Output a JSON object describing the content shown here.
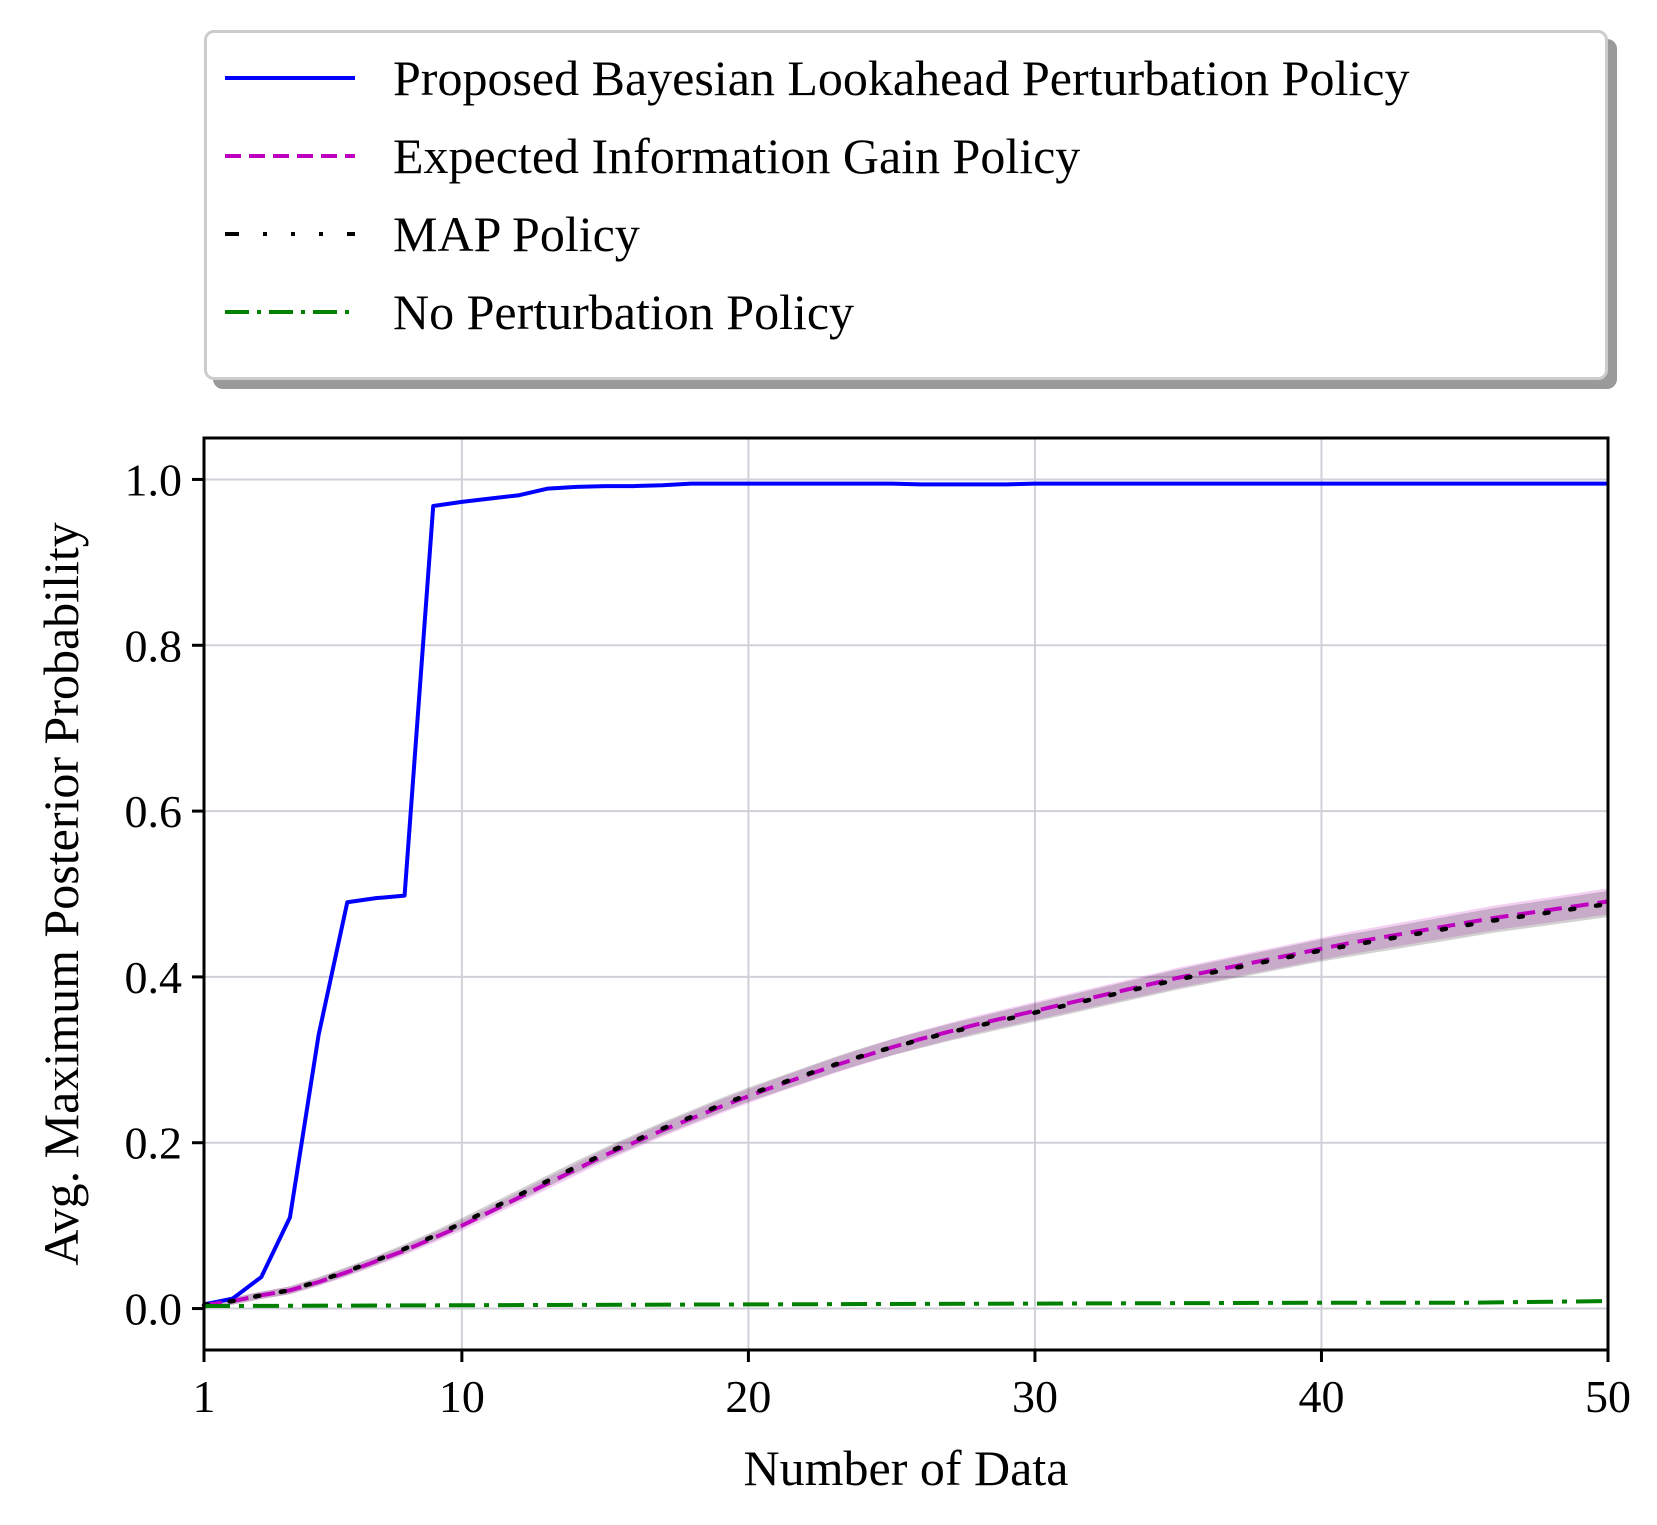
{
  "chart_data": {
    "type": "line",
    "title": "",
    "xlabel": "Number of Data",
    "ylabel": "Avg. Maximum Posterior Probability",
    "xlim": [
      1,
      50
    ],
    "ylim": [
      -0.05,
      1.05
    ],
    "xticks": [
      1,
      10,
      20,
      30,
      40,
      50
    ],
    "yticks": [
      0.0,
      0.2,
      0.4,
      0.6,
      0.8,
      1.0
    ],
    "xtick_labels": [
      "1",
      "10",
      "20",
      "30",
      "40",
      "50"
    ],
    "ytick_labels": [
      "0.0",
      "0.2",
      "0.4",
      "0.6",
      "0.8",
      "1.0"
    ],
    "grid": true,
    "legend_position": "above plot, outside",
    "series": [
      {
        "name": "Proposed Bayesian Lookahead Perturbation Policy",
        "color": "#0000ff",
        "style": "solid",
        "x": [
          1,
          2,
          3,
          4,
          5,
          6,
          7,
          8,
          9,
          10,
          11,
          12,
          13,
          14,
          15,
          16,
          17,
          18,
          19,
          20,
          21,
          22,
          23,
          24,
          25,
          26,
          27,
          28,
          29,
          30,
          31,
          32,
          33,
          34,
          35,
          36,
          37,
          38,
          39,
          40,
          41,
          42,
          43,
          44,
          45,
          46,
          47,
          48,
          49,
          50
        ],
        "y": [
          0.005,
          0.012,
          0.038,
          0.11,
          0.33,
          0.49,
          0.495,
          0.498,
          0.968,
          0.973,
          0.977,
          0.981,
          0.989,
          0.991,
          0.992,
          0.992,
          0.993,
          0.995,
          0.995,
          0.995,
          0.995,
          0.995,
          0.995,
          0.995,
          0.995,
          0.994,
          0.994,
          0.994,
          0.994,
          0.995,
          0.995,
          0.995,
          0.995,
          0.995,
          0.995,
          0.995,
          0.995,
          0.995,
          0.995,
          0.995,
          0.995,
          0.995,
          0.995,
          0.995,
          0.995,
          0.995,
          0.995,
          0.995,
          0.995,
          0.995
        ]
      },
      {
        "name": "Expected Information Gain Policy",
        "color": "#c000c0",
        "style": "dashed",
        "x": [
          1,
          2,
          3,
          4,
          5,
          6,
          7,
          8,
          9,
          10,
          11,
          12,
          13,
          14,
          15,
          16,
          17,
          18,
          19,
          20,
          21,
          22,
          23,
          24,
          25,
          26,
          27,
          28,
          29,
          30,
          31,
          32,
          33,
          34,
          35,
          36,
          37,
          38,
          39,
          40,
          41,
          42,
          43,
          44,
          45,
          46,
          47,
          48,
          49,
          50
        ],
        "y": [
          0.004,
          0.009,
          0.016,
          0.022,
          0.032,
          0.044,
          0.057,
          0.07,
          0.085,
          0.1,
          0.117,
          0.134,
          0.151,
          0.168,
          0.185,
          0.2,
          0.215,
          0.229,
          0.243,
          0.256,
          0.269,
          0.281,
          0.293,
          0.304,
          0.315,
          0.325,
          0.334,
          0.343,
          0.351,
          0.359,
          0.367,
          0.375,
          0.383,
          0.391,
          0.399,
          0.406,
          0.413,
          0.42,
          0.427,
          0.434,
          0.441,
          0.447,
          0.453,
          0.459,
          0.465,
          0.471,
          0.476,
          0.481,
          0.486,
          0.491
        ]
      },
      {
        "name": "MAP Policy",
        "color": "#000000",
        "style": "dotted",
        "x": [
          1,
          2,
          3,
          4,
          5,
          6,
          7,
          8,
          9,
          10,
          11,
          12,
          13,
          14,
          15,
          16,
          17,
          18,
          19,
          20,
          21,
          22,
          23,
          24,
          25,
          26,
          27,
          28,
          29,
          30,
          31,
          32,
          33,
          34,
          35,
          36,
          37,
          38,
          39,
          40,
          41,
          42,
          43,
          44,
          45,
          46,
          47,
          48,
          49,
          50
        ],
        "y": [
          0.004,
          0.009,
          0.016,
          0.022,
          0.033,
          0.045,
          0.058,
          0.072,
          0.087,
          0.103,
          0.12,
          0.137,
          0.154,
          0.171,
          0.187,
          0.202,
          0.217,
          0.231,
          0.245,
          0.258,
          0.27,
          0.282,
          0.294,
          0.305,
          0.315,
          0.324,
          0.333,
          0.341,
          0.349,
          0.357,
          0.365,
          0.373,
          0.381,
          0.389,
          0.397,
          0.404,
          0.411,
          0.418,
          0.425,
          0.432,
          0.438,
          0.444,
          0.45,
          0.456,
          0.462,
          0.468,
          0.473,
          0.478,
          0.483,
          0.488
        ]
      },
      {
        "name": "No Perturbation Policy",
        "color": "#008000",
        "style": "dashdot",
        "x": [
          1,
          10,
          20,
          30,
          40,
          45,
          50
        ],
        "y": [
          0.003,
          0.004,
          0.005,
          0.006,
          0.007,
          0.007,
          0.009
        ]
      }
    ]
  }
}
